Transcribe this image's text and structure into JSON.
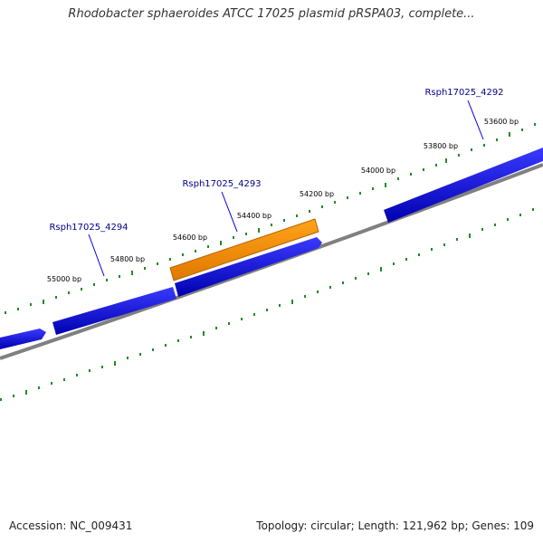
{
  "title": "Rhodobacter sphaeroides ATCC 17025 plasmid pRSPA03, complete...",
  "footer": {
    "accession": "Accession: NC_009431",
    "stats": "Topology: circular; Length: 121,962 bp; Genes: 109"
  },
  "map": {
    "scale_labels": [
      "53600 bp",
      "53800 bp",
      "54000 bp",
      "54200 bp",
      "54400 bp",
      "54600 bp",
      "54800 bp",
      "55000 bp"
    ],
    "gene_labels": [
      "Rsph17025_4292",
      "Rsph17025_4293",
      "Rsph17025_4294"
    ],
    "colors": {
      "gene": "#0000dd",
      "highlight": "#ff8c00",
      "backbone": "#808080",
      "ticks": "#228b22",
      "label": "#00008b"
    }
  }
}
